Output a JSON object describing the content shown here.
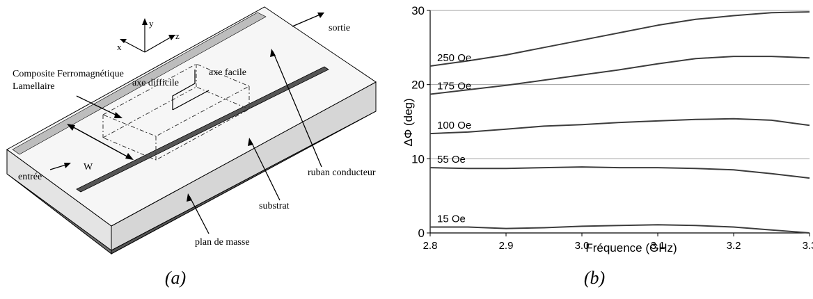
{
  "diagram": {
    "axes": {
      "y": "y",
      "x": "x",
      "z": "z"
    },
    "labels": {
      "composite_line1": "Composite Ferromagnétique",
      "composite_line2": "Lamellaire",
      "axe_facile": "axe facile",
      "axe_difficile": "axe difficile",
      "sortie": "sortie",
      "entree": "entrée",
      "w": "W",
      "ruban": "ruban conducteur",
      "substrat": "substrat",
      "plan_masse": "plan de masse"
    },
    "caption": "(a)"
  },
  "chart_caption": "(b)",
  "chart_data": {
    "type": "line",
    "title": "",
    "xlabel": "Fréquence (GHz)",
    "ylabel": "ΔΦ (deg)",
    "xlim": [
      2.8,
      3.3
    ],
    "ylim": [
      0,
      30
    ],
    "xticks": [
      "2.8",
      "2.9",
      "3.0",
      "3.1",
      "3.2",
      "3.3"
    ],
    "yticks": [
      "0",
      "10",
      "20",
      "30"
    ],
    "grid": "horizontal",
    "x": [
      2.8,
      2.85,
      2.9,
      2.95,
      3.0,
      3.05,
      3.1,
      3.15,
      3.2,
      3.25,
      3.3
    ],
    "series": [
      {
        "name": "250 Oe",
        "values": [
          22.5,
          23.2,
          24.0,
          25.0,
          26.0,
          27.0,
          28.0,
          28.8,
          29.3,
          29.7,
          29.8
        ]
      },
      {
        "name": "175 Oe",
        "values": [
          18.7,
          19.3,
          19.9,
          20.6,
          21.3,
          22.0,
          22.8,
          23.5,
          23.8,
          23.8,
          23.6
        ]
      },
      {
        "name": "100 Oe",
        "values": [
          13.4,
          13.6,
          14.0,
          14.4,
          14.6,
          14.9,
          15.1,
          15.3,
          15.4,
          15.2,
          14.5
        ]
      },
      {
        "name": "55 Oe",
        "values": [
          8.8,
          8.7,
          8.7,
          8.8,
          8.9,
          8.8,
          8.8,
          8.7,
          8.5,
          8.0,
          7.4
        ]
      },
      {
        "name": "15 Oe",
        "values": [
          0.8,
          0.8,
          0.6,
          0.7,
          0.9,
          1.0,
          1.1,
          1.0,
          0.8,
          0.4,
          0.0
        ]
      }
    ],
    "colors": {
      "line": "#3c3c3c",
      "grid": "#a0a0a0"
    }
  }
}
